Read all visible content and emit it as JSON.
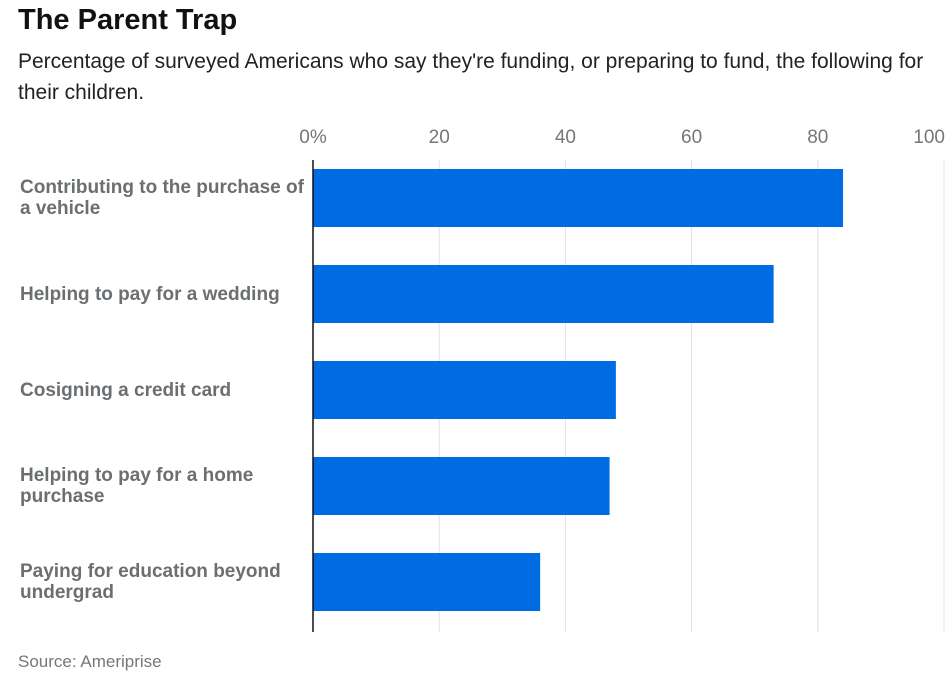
{
  "title": "The Parent Trap",
  "subtitle": "Percentage of surveyed Americans who say they're funding, or preparing to fund, the following for their children.",
  "source": "Source: Ameriprise",
  "chart_data": {
    "type": "bar",
    "orientation": "horizontal",
    "categories": [
      "Contributing to the purchase of a vehicle",
      "Helping to pay for a wedding",
      "Cosigning a credit card",
      "Helping to pay for a home purchase",
      "Paying for education beyond undergrad"
    ],
    "values": [
      84,
      73,
      48,
      47,
      36
    ],
    "xlim": [
      0,
      100
    ],
    "tick_labels": [
      "0%",
      "20",
      "40",
      "60",
      "80",
      "100"
    ],
    "tick_values": [
      0,
      20,
      40,
      60,
      80,
      100
    ],
    "xlabel": "",
    "ylabel": "",
    "grid": true,
    "bar_color": "#006ce4"
  }
}
